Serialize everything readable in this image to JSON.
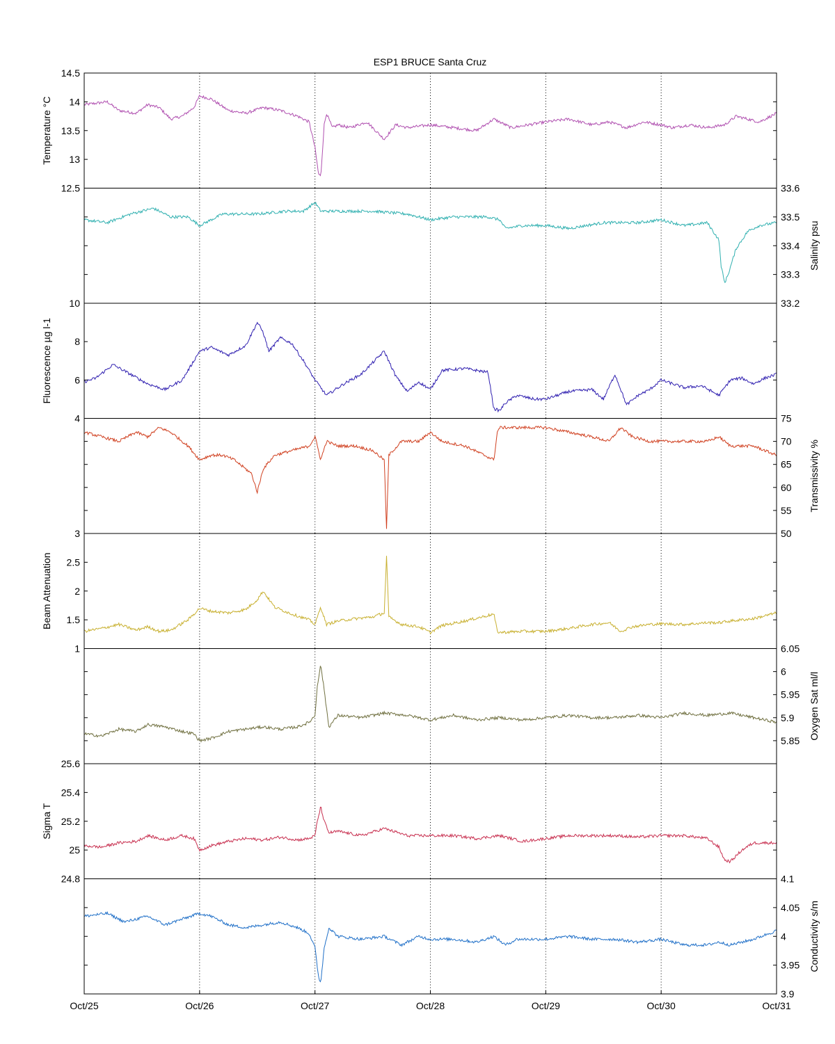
{
  "chart_data": {
    "type": "line",
    "title": "ESP1 BRUCE Santa Cruz",
    "x": {
      "tick_labels": [
        "Oct/25",
        "Oct/26",
        "Oct/27",
        "Oct/28",
        "Oct/29",
        "Oct/30",
        "Oct/31"
      ],
      "range_days": [
        0,
        6
      ],
      "grid": "dotted vertical lines at each day"
    },
    "panels": [
      {
        "id": "temperature",
        "ylabel": "Temperature °C",
        "axis_side": "left",
        "ylim": [
          12.5,
          14.5
        ],
        "ticks": [
          "12.5",
          "13",
          "13.5",
          "14",
          "14.5"
        ],
        "tick_values": [
          12.5,
          13,
          13.5,
          14,
          14.5
        ],
        "color": "#b050b0",
        "series": {
          "name": "",
          "x": [
            0,
            0.2,
            0.3,
            0.45,
            0.55,
            0.65,
            0.75,
            0.85,
            0.95,
            1.0,
            1.1,
            1.25,
            1.4,
            1.55,
            1.7,
            1.85,
            1.95,
            2.0,
            2.03,
            2.05,
            2.08,
            2.1,
            2.15,
            2.2,
            2.3,
            2.45,
            2.6,
            2.7,
            2.8,
            3.0,
            3.2,
            3.4,
            3.55,
            3.7,
            3.85,
            4.0,
            4.2,
            4.4,
            4.55,
            4.7,
            4.85,
            5.0,
            5.1,
            5.25,
            5.4,
            5.55,
            5.65,
            5.75,
            5.85,
            6.0
          ],
          "y": [
            13.95,
            14.0,
            13.85,
            13.8,
            13.95,
            13.9,
            13.7,
            13.75,
            13.9,
            14.1,
            14.05,
            13.85,
            13.8,
            13.9,
            13.85,
            13.75,
            13.65,
            13.2,
            12.75,
            12.7,
            13.6,
            13.8,
            13.55,
            13.6,
            13.55,
            13.65,
            13.35,
            13.6,
            13.55,
            13.6,
            13.55,
            13.5,
            13.7,
            13.55,
            13.6,
            13.65,
            13.7,
            13.6,
            13.65,
            13.55,
            13.65,
            13.6,
            13.55,
            13.6,
            13.55,
            13.6,
            13.75,
            13.7,
            13.65,
            13.8
          ]
        }
      },
      {
        "id": "salinity",
        "ylabel": "Salinity psu",
        "axis_side": "right",
        "ylim": [
          33.2,
          33.6
        ],
        "ticks": [
          "33.2",
          "33.3",
          "33.4",
          "33.5",
          "33.6"
        ],
        "tick_values": [
          33.2,
          33.3,
          33.4,
          33.5,
          33.6
        ],
        "color": "#30b0b0",
        "series": {
          "name": "",
          "x": [
            0,
            0.2,
            0.4,
            0.6,
            0.75,
            0.9,
            1.0,
            1.2,
            1.5,
            1.75,
            1.9,
            2.0,
            2.05,
            2.2,
            2.5,
            2.8,
            3.0,
            3.2,
            3.5,
            3.6,
            3.65,
            3.8,
            4.0,
            4.2,
            4.5,
            4.8,
            5.0,
            5.2,
            5.4,
            5.5,
            5.52,
            5.55,
            5.58,
            5.65,
            5.75,
            5.85,
            6.0
          ],
          "y": [
            33.49,
            33.48,
            33.51,
            33.53,
            33.5,
            33.5,
            33.47,
            33.51,
            33.51,
            33.52,
            33.52,
            33.55,
            33.52,
            33.52,
            33.52,
            33.51,
            33.49,
            33.5,
            33.5,
            33.49,
            33.46,
            33.47,
            33.47,
            33.46,
            33.48,
            33.48,
            33.49,
            33.47,
            33.48,
            33.42,
            33.33,
            33.27,
            33.3,
            33.39,
            33.45,
            33.47,
            33.48
          ]
        }
      },
      {
        "id": "fluorescence",
        "ylabel": "Fluorescence µg l-1",
        "axis_side": "left",
        "ylim": [
          4,
          10
        ],
        "ticks": [
          "4",
          "6",
          "8",
          "10"
        ],
        "tick_values": [
          4,
          6,
          8,
          10
        ],
        "color": "#3020b0",
        "series": {
          "name": "",
          "x": [
            0,
            0.1,
            0.25,
            0.4,
            0.55,
            0.7,
            0.85,
            1.0,
            1.1,
            1.25,
            1.4,
            1.5,
            1.55,
            1.6,
            1.7,
            1.8,
            1.9,
            2.0,
            2.05,
            2.1,
            2.25,
            2.4,
            2.55,
            2.6,
            2.7,
            2.8,
            2.9,
            3.0,
            3.1,
            3.3,
            3.5,
            3.55,
            3.6,
            3.65,
            3.75,
            3.9,
            4.0,
            4.2,
            4.4,
            4.5,
            4.6,
            4.7,
            4.8,
            4.9,
            5.0,
            5.2,
            5.35,
            5.5,
            5.6,
            5.7,
            5.8,
            5.9,
            6.0
          ],
          "y": [
            5.9,
            6.1,
            6.8,
            6.3,
            5.8,
            5.5,
            6.0,
            7.5,
            7.7,
            7.3,
            7.8,
            9.0,
            8.5,
            7.5,
            8.2,
            7.9,
            7.0,
            6.0,
            5.6,
            5.2,
            5.8,
            6.3,
            7.2,
            7.5,
            6.2,
            5.4,
            5.9,
            5.5,
            6.5,
            6.6,
            6.4,
            4.5,
            4.4,
            4.8,
            5.2,
            5.0,
            5.0,
            5.4,
            5.5,
            5.0,
            6.3,
            4.7,
            5.2,
            5.5,
            6.0,
            5.6,
            5.7,
            5.2,
            6.0,
            6.1,
            5.8,
            6.1,
            6.3
          ]
        }
      },
      {
        "id": "transmissivity",
        "ylabel": "Transmissivity %",
        "axis_side": "right",
        "ylim": [
          50,
          75
        ],
        "ticks": [
          "50",
          "55",
          "60",
          "65",
          "70",
          "75"
        ],
        "tick_values": [
          50,
          55,
          60,
          65,
          70,
          75
        ],
        "color": "#d04020",
        "series": {
          "name": "",
          "x": [
            0,
            0.15,
            0.3,
            0.45,
            0.55,
            0.65,
            0.75,
            0.9,
            1.0,
            1.1,
            1.2,
            1.3,
            1.45,
            1.5,
            1.55,
            1.65,
            1.8,
            1.95,
            2.0,
            2.05,
            2.1,
            2.2,
            2.35,
            2.5,
            2.6,
            2.62,
            2.64,
            2.75,
            2.9,
            3.0,
            3.1,
            3.3,
            3.55,
            3.58,
            3.6,
            3.8,
            4.0,
            4.2,
            4.4,
            4.55,
            4.65,
            4.75,
            4.9,
            5.0,
            5.2,
            5.4,
            5.5,
            5.6,
            5.8,
            6.0
          ],
          "y": [
            72,
            71,
            70,
            72,
            71,
            73,
            72,
            69,
            66,
            67,
            67,
            66,
            63,
            59,
            64,
            67,
            68,
            69,
            71,
            66,
            70,
            69,
            69,
            68,
            66,
            51,
            67,
            70,
            70,
            72,
            70,
            69,
            66,
            72,
            73,
            73,
            73,
            72,
            71,
            70,
            73,
            71,
            70,
            70,
            70,
            70,
            71,
            69,
            69,
            67
          ]
        }
      },
      {
        "id": "beam_attenuation",
        "ylabel": "Beam Attenuation",
        "axis_side": "left",
        "ylim": [
          1,
          3
        ],
        "ticks": [
          "1",
          "1.5",
          "2",
          "2.5",
          "3"
        ],
        "tick_values": [
          1,
          1.5,
          2,
          2.5,
          3
        ],
        "color": "#c8b030",
        "series": {
          "name": "",
          "x": [
            0,
            0.15,
            0.3,
            0.45,
            0.55,
            0.65,
            0.75,
            0.9,
            1.0,
            1.1,
            1.25,
            1.4,
            1.5,
            1.55,
            1.65,
            1.8,
            1.95,
            2.0,
            2.05,
            2.1,
            2.2,
            2.35,
            2.5,
            2.6,
            2.62,
            2.64,
            2.75,
            2.9,
            3.0,
            3.1,
            3.3,
            3.55,
            3.58,
            3.6,
            3.8,
            4.0,
            4.2,
            4.4,
            4.55,
            4.65,
            4.75,
            4.9,
            5.0,
            5.2,
            5.4,
            5.5,
            5.6,
            5.8,
            6.0
          ],
          "y": [
            1.3,
            1.35,
            1.42,
            1.32,
            1.38,
            1.3,
            1.32,
            1.5,
            1.7,
            1.65,
            1.62,
            1.68,
            1.85,
            2.0,
            1.72,
            1.6,
            1.5,
            1.42,
            1.72,
            1.42,
            1.48,
            1.52,
            1.55,
            1.62,
            2.6,
            1.55,
            1.42,
            1.38,
            1.28,
            1.4,
            1.48,
            1.6,
            1.3,
            1.28,
            1.3,
            1.3,
            1.35,
            1.42,
            1.45,
            1.3,
            1.38,
            1.42,
            1.43,
            1.42,
            1.45,
            1.45,
            1.48,
            1.52,
            1.62
          ]
        }
      },
      {
        "id": "oxygen_sat",
        "ylabel": "Oxygen Sat ml/l",
        "axis_side": "right",
        "ylim": [
          5.8,
          6.05
        ],
        "ticks": [
          "5.85",
          "5.9",
          "5.95",
          "6",
          "6.05"
        ],
        "tick_values": [
          5.85,
          5.9,
          5.95,
          6.0,
          6.05
        ],
        "color": "#707040",
        "series": {
          "name": "",
          "x": [
            0,
            0.15,
            0.3,
            0.45,
            0.55,
            0.7,
            0.85,
            0.95,
            1.0,
            1.1,
            1.25,
            1.4,
            1.55,
            1.7,
            1.85,
            1.95,
            2.0,
            2.02,
            2.05,
            2.08,
            2.12,
            2.2,
            2.4,
            2.6,
            2.8,
            3.0,
            3.2,
            3.4,
            3.6,
            3.8,
            4.0,
            4.2,
            4.4,
            4.6,
            4.8,
            5.0,
            5.2,
            5.4,
            5.6,
            5.8,
            6.0
          ],
          "y": [
            5.865,
            5.86,
            5.875,
            5.87,
            5.885,
            5.88,
            5.87,
            5.865,
            5.85,
            5.855,
            5.87,
            5.875,
            5.88,
            5.875,
            5.88,
            5.89,
            5.905,
            5.97,
            6.015,
            5.96,
            5.88,
            5.905,
            5.9,
            5.91,
            5.905,
            5.895,
            5.905,
            5.895,
            5.9,
            5.895,
            5.9,
            5.905,
            5.9,
            5.9,
            5.905,
            5.9,
            5.91,
            5.905,
            5.91,
            5.9,
            5.89
          ]
        }
      },
      {
        "id": "sigma_t",
        "ylabel": "Sigma T",
        "axis_side": "left",
        "ylim": [
          24.8,
          25.6
        ],
        "ticks": [
          "24.8",
          "25",
          "25.2",
          "25.4",
          "25.6"
        ],
        "tick_values": [
          24.8,
          25,
          25.2,
          25.4,
          25.6
        ],
        "color": "#c83050",
        "series": {
          "name": "",
          "x": [
            0,
            0.15,
            0.3,
            0.45,
            0.55,
            0.7,
            0.85,
            0.95,
            1.0,
            1.1,
            1.25,
            1.4,
            1.55,
            1.7,
            1.85,
            1.95,
            2.0,
            2.02,
            2.05,
            2.08,
            2.12,
            2.2,
            2.4,
            2.6,
            2.8,
            3.0,
            3.2,
            3.4,
            3.6,
            3.8,
            4.0,
            4.2,
            4.4,
            4.6,
            4.8,
            5.0,
            5.2,
            5.4,
            5.5,
            5.55,
            5.6,
            5.7,
            5.8,
            6.0
          ],
          "y": [
            25.03,
            25.02,
            25.05,
            25.06,
            25.1,
            25.07,
            25.1,
            25.08,
            25.0,
            25.03,
            25.06,
            25.08,
            25.07,
            25.09,
            25.07,
            25.08,
            25.1,
            25.2,
            25.3,
            25.2,
            25.12,
            25.13,
            25.1,
            25.15,
            25.1,
            25.1,
            25.1,
            25.08,
            25.1,
            25.06,
            25.08,
            25.1,
            25.1,
            25.1,
            25.09,
            25.1,
            25.1,
            25.08,
            25.02,
            24.93,
            24.92,
            25.0,
            25.05,
            25.05
          ]
        }
      },
      {
        "id": "conductivity",
        "ylabel": "Conductivity s/m",
        "axis_side": "right",
        "ylim": [
          3.9,
          4.1
        ],
        "ticks": [
          "3.9",
          "3.95",
          "4",
          "4.05",
          "4.1"
        ],
        "tick_values": [
          3.9,
          3.95,
          4.0,
          4.05,
          4.1
        ],
        "color": "#2070c8",
        "series": {
          "name": "",
          "x": [
            0,
            0.2,
            0.35,
            0.55,
            0.7,
            0.85,
            1.0,
            1.1,
            1.25,
            1.4,
            1.55,
            1.7,
            1.85,
            1.95,
            2.0,
            2.03,
            2.05,
            2.08,
            2.12,
            2.2,
            2.4,
            2.6,
            2.75,
            2.9,
            3.0,
            3.2,
            3.4,
            3.55,
            3.65,
            3.75,
            4.0,
            4.2,
            4.4,
            4.6,
            4.8,
            5.0,
            5.2,
            5.4,
            5.5,
            5.6,
            5.8,
            6.0
          ],
          "y": [
            4.035,
            4.04,
            4.025,
            4.035,
            4.02,
            4.03,
            4.04,
            4.035,
            4.02,
            4.015,
            4.02,
            4.025,
            4.015,
            4.005,
            3.98,
            3.93,
            3.92,
            3.98,
            4.015,
            4.0,
            3.995,
            4.0,
            3.985,
            4.0,
            3.995,
            3.995,
            3.99,
            4.0,
            3.985,
            3.995,
            3.995,
            4.0,
            3.995,
            3.995,
            3.99,
            3.995,
            3.985,
            3.985,
            3.99,
            3.985,
            3.995,
            4.01
          ]
        }
      }
    ]
  }
}
